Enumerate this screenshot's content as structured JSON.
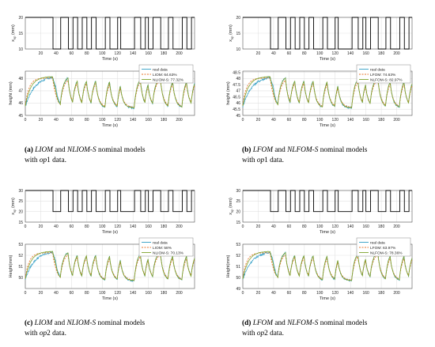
{
  "chart_data": [
    {
      "type": "line",
      "panel_id": "a",
      "caption": {
        "letter": "(a)",
        "model1": "LIOM",
        "and": "and",
        "model2": "NLIOM-S",
        "rest1": "nominal models",
        "with": "with",
        "op_prefix": "op",
        "op_num": "1",
        "data_word": "data."
      },
      "input": {
        "ylabel": "x_up (mm)",
        "ylabel_main": "x",
        "ylabel_sub": "up",
        "ylabel_unit": "(mm)",
        "xlabel": "Time (s)",
        "xlim": [
          0,
          220
        ],
        "ylim": [
          10,
          20
        ],
        "yticks": [
          "10",
          "15",
          "20"
        ],
        "xticks": [
          "20",
          "40",
          "60",
          "80",
          "100",
          "120",
          "140",
          "160",
          "180",
          "200"
        ],
        "steps": [
          [
            0,
            20
          ],
          [
            36,
            10
          ],
          [
            46,
            20
          ],
          [
            56,
            10
          ],
          [
            62,
            20
          ],
          [
            68,
            10
          ],
          [
            74,
            20
          ],
          [
            80,
            10
          ],
          [
            86,
            20
          ],
          [
            92,
            10
          ],
          [
            104,
            20
          ],
          [
            110,
            10
          ],
          [
            120,
            20
          ],
          [
            124,
            10
          ],
          [
            142,
            20
          ],
          [
            150,
            10
          ],
          [
            156,
            20
          ],
          [
            160,
            10
          ],
          [
            166,
            20
          ],
          [
            176,
            10
          ],
          [
            186,
            20
          ],
          [
            192,
            10
          ],
          [
            204,
            20
          ],
          [
            210,
            10
          ],
          [
            216,
            20
          ],
          [
            220,
            20
          ]
        ]
      },
      "output": {
        "ylabel": "height (mm)",
        "xlabel": "Time (s)",
        "xlim": [
          0,
          220
        ],
        "ylim": [
          45,
          48.6
        ],
        "yticks": [
          "45",
          "46",
          "47",
          "48"
        ],
        "xticks": [
          "0",
          "20",
          "40",
          "60",
          "80",
          "100",
          "120",
          "140",
          "160",
          "180",
          "200"
        ],
        "tau": 4,
        "low": 45.6,
        "high": 48.2,
        "legend": {
          "position": "top-right",
          "entries": [
            "real data",
            "LIOM: 64.63%",
            "NLIOM-S: 77.32%"
          ]
        }
      }
    },
    {
      "type": "line",
      "panel_id": "b",
      "caption": {
        "letter": "(b)",
        "model1": "LFOM",
        "and": "and",
        "model2": "NLFOM-S",
        "rest1": "nominal models",
        "with": "with",
        "op_prefix": "op",
        "op_num": "1",
        "data_word": "data."
      },
      "input": {
        "ylabel": "x_up (mm)",
        "ylabel_main": "x",
        "ylabel_sub": "up",
        "ylabel_unit": "(mm)",
        "xlabel": "Time (s)",
        "xlim": [
          0,
          220
        ],
        "ylim": [
          10,
          20
        ],
        "yticks": [
          "10",
          "15",
          "20"
        ],
        "xticks": [
          "20",
          "40",
          "60",
          "80",
          "100",
          "120",
          "140",
          "160",
          "180",
          "200"
        ],
        "steps": [
          [
            0,
            20
          ],
          [
            36,
            10
          ],
          [
            46,
            20
          ],
          [
            56,
            10
          ],
          [
            62,
            20
          ],
          [
            68,
            10
          ],
          [
            74,
            20
          ],
          [
            80,
            10
          ],
          [
            86,
            20
          ],
          [
            92,
            10
          ],
          [
            104,
            20
          ],
          [
            110,
            10
          ],
          [
            120,
            20
          ],
          [
            124,
            10
          ],
          [
            142,
            20
          ],
          [
            150,
            10
          ],
          [
            156,
            20
          ],
          [
            160,
            10
          ],
          [
            166,
            20
          ],
          [
            176,
            10
          ],
          [
            186,
            20
          ],
          [
            192,
            10
          ],
          [
            204,
            20
          ],
          [
            210,
            10
          ],
          [
            216,
            20
          ],
          [
            220,
            20
          ]
        ]
      },
      "output": {
        "ylabel": "height (mm)",
        "xlabel": "Time (s)",
        "xlim": [
          0,
          220
        ],
        "ylim": [
          45,
          48.6
        ],
        "yticks": [
          "45",
          "45.5",
          "46",
          "46.5",
          "47",
          "47.5",
          "48",
          "48.5"
        ],
        "xticks": [
          "0",
          "20",
          "40",
          "60",
          "80",
          "100",
          "120",
          "140",
          "160",
          "180",
          "200"
        ],
        "tau": 4,
        "low": 45.6,
        "high": 48.2,
        "legend": {
          "position": "top-right",
          "entries": [
            "real data",
            "LFOM: 74.63%",
            "NLFOM-S: 82.97%"
          ]
        }
      }
    },
    {
      "type": "line",
      "panel_id": "c",
      "caption": {
        "letter": "(c)",
        "model1": "LIOM",
        "and": "and",
        "model2": "NLIOM-S",
        "rest1": "nominal models",
        "with": "with",
        "op_prefix": "op",
        "op_num": "2",
        "data_word": "data."
      },
      "input": {
        "ylabel": "x_up (mm)",
        "ylabel_main": "x",
        "ylabel_sub": "up",
        "ylabel_unit": "(mm)",
        "xlabel": "Time (s)",
        "xlim": [
          0,
          220
        ],
        "ylim": [
          15,
          30
        ],
        "yticks": [
          "15",
          "20",
          "25",
          "30"
        ],
        "xticks": [
          "0",
          "20",
          "40",
          "60",
          "80",
          "100",
          "120",
          "140",
          "160",
          "180",
          "200"
        ],
        "steps": [
          [
            0,
            30
          ],
          [
            36,
            20
          ],
          [
            46,
            30
          ],
          [
            56,
            20
          ],
          [
            62,
            30
          ],
          [
            68,
            20
          ],
          [
            74,
            30
          ],
          [
            80,
            20
          ],
          [
            86,
            30
          ],
          [
            92,
            20
          ],
          [
            104,
            30
          ],
          [
            110,
            20
          ],
          [
            120,
            30
          ],
          [
            124,
            20
          ],
          [
            142,
            30
          ],
          [
            150,
            20
          ],
          [
            156,
            30
          ],
          [
            160,
            20
          ],
          [
            166,
            30
          ],
          [
            176,
            20
          ],
          [
            186,
            30
          ],
          [
            192,
            20
          ],
          [
            204,
            30
          ],
          [
            210,
            20
          ],
          [
            216,
            30
          ],
          [
            220,
            30
          ]
        ]
      },
      "output": {
        "ylabel": "Height(mm)",
        "xlabel": "Time (s)",
        "xlim": [
          0,
          220
        ],
        "ylim": [
          49,
          53
        ],
        "yticks": [
          "50",
          "51",
          "52",
          "53"
        ],
        "xticks": [
          "0",
          "20",
          "40",
          "60",
          "80",
          "100",
          "120",
          "140",
          "160",
          "180",
          "200"
        ],
        "tau": 4,
        "low": 49.7,
        "high": 52.4,
        "legend": {
          "position": "top-right",
          "entries": [
            "real data",
            "LIOM: 58%",
            "NLIOM-S: 70.13%"
          ]
        }
      }
    },
    {
      "type": "line",
      "panel_id": "d",
      "caption": {
        "letter": "(d)",
        "model1": "LFOM",
        "and": "and",
        "model2": "NLFOM-S",
        "rest1": "nominal models",
        "with": "with",
        "op_prefix": "op",
        "op_num": "2",
        "data_word": "data."
      },
      "input": {
        "ylabel": "x_up (mm)",
        "ylabel_main": "x",
        "ylabel_sub": "up",
        "ylabel_unit": "(mm)",
        "xlabel": "Time (s)",
        "xlim": [
          0,
          220
        ],
        "ylim": [
          15,
          30
        ],
        "yticks": [
          "15",
          "20",
          "25",
          "30"
        ],
        "xticks": [
          "0",
          "20",
          "40",
          "60",
          "80",
          "100",
          "120",
          "140",
          "160",
          "180",
          "200"
        ],
        "steps": [
          [
            0,
            30
          ],
          [
            36,
            20
          ],
          [
            46,
            30
          ],
          [
            56,
            20
          ],
          [
            62,
            30
          ],
          [
            68,
            20
          ],
          [
            74,
            30
          ],
          [
            80,
            20
          ],
          [
            86,
            30
          ],
          [
            92,
            20
          ],
          [
            104,
            30
          ],
          [
            110,
            20
          ],
          [
            120,
            30
          ],
          [
            124,
            20
          ],
          [
            142,
            30
          ],
          [
            150,
            20
          ],
          [
            156,
            30
          ],
          [
            160,
            20
          ],
          [
            166,
            30
          ],
          [
            176,
            20
          ],
          [
            186,
            30
          ],
          [
            192,
            20
          ],
          [
            204,
            30
          ],
          [
            210,
            20
          ],
          [
            216,
            30
          ],
          [
            220,
            30
          ]
        ]
      },
      "output": {
        "ylabel": "Height(mm)",
        "xlabel": "Time (s)",
        "xlim": [
          0,
          220
        ],
        "ylim": [
          49,
          53
        ],
        "yticks": [
          "49",
          "50",
          "51",
          "52",
          "53"
        ],
        "xticks": [
          "0",
          "20",
          "40",
          "60",
          "80",
          "100",
          "120",
          "140",
          "160",
          "180",
          "200"
        ],
        "tau": 4,
        "low": 49.7,
        "high": 52.4,
        "legend": {
          "position": "top-right",
          "entries": [
            "real data",
            "LFOM: 63.97%",
            "NLFOM-S: 78.36%"
          ]
        }
      }
    }
  ],
  "colors": {
    "real": "#2f9dc4",
    "model_linear": "#e8742b",
    "model_nonlinear": "#7ea32c",
    "input": "#000000",
    "grid": "#e2e2e2"
  }
}
